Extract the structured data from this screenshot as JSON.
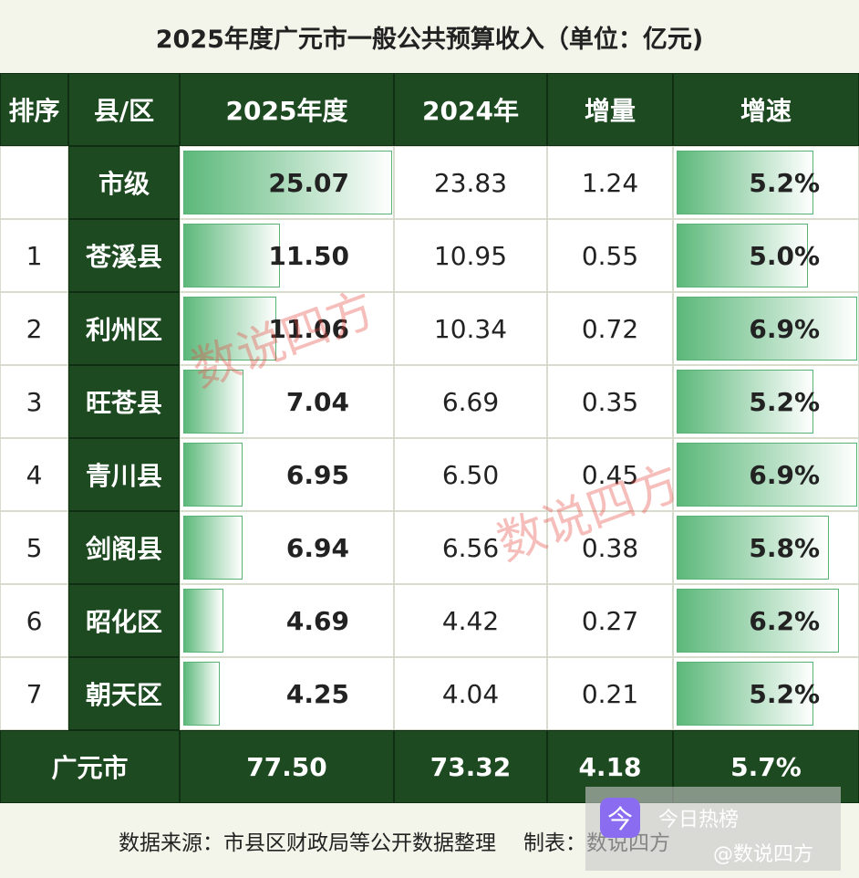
{
  "title": "2025年度广元市一般公共预算收入（单位：亿元)",
  "header": [
    "排序",
    "县/区",
    "2025年度",
    "2024年",
    "增量",
    "增速"
  ],
  "rows": [
    [
      null,
      "市级",
      "25.07",
      "23.83",
      "1.24",
      "5.2%"
    ],
    [
      "1",
      "苍溪县",
      "11.50",
      "10.95",
      "0.55",
      "5.0%"
    ],
    [
      "2",
      "利州区",
      "11.06",
      "10.34",
      "0.72",
      "6.9%"
    ],
    [
      "3",
      "旺苍县",
      "7.04",
      "6.69",
      "0.35",
      "5.2%"
    ],
    [
      "4",
      "青川县",
      "6.95",
      "6.50",
      "0.45",
      "6.9%"
    ],
    [
      "5",
      "剑阁县",
      "6.94",
      "6.56",
      "0.38",
      "5.8%"
    ],
    [
      "6",
      "昭化区",
      "4.69",
      "4.42",
      "0.27",
      "6.2%"
    ],
    [
      "7",
      "朝天区",
      "4.25",
      "4.04",
      "0.21",
      "5.2%"
    ]
  ],
  "total": [
    "广元市",
    "77.50",
    "73.32",
    "4.18",
    "5.7%"
  ],
  "footer": {
    "source": "数据来源：市县区财政局等公开数据整理",
    "maker": "制表：数说四方"
  },
  "watermarks": [
    "数说四方",
    "数说四方"
  ],
  "badge": {
    "icon": "今",
    "name": "今日热榜",
    "handle": "@数说四方"
  }
}
